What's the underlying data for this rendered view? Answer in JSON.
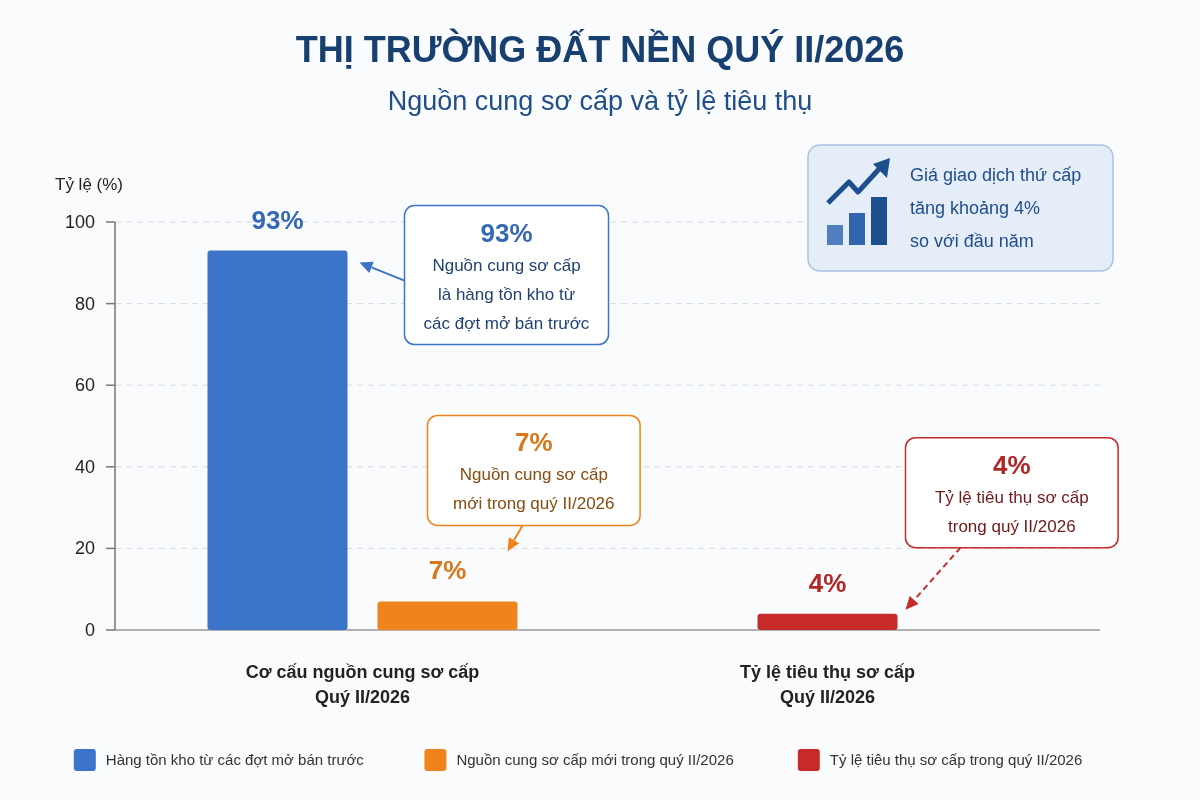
{
  "chart_data": {
    "type": "bar",
    "title": "THỊ TRƯỜNG ĐẤT NỀN QUÝ II/2026",
    "subtitle": "Nguồn cung sơ cấp và tỷ lệ tiêu thụ",
    "ylabel": "Tỷ lệ (%)",
    "categories": [
      "Cơ cấu nguồn cung sơ cấp Quý II/2026",
      "Tỷ lệ tiêu thụ sơ cấp Quý II/2026"
    ],
    "series": [
      {
        "name": "Hàng tồn kho từ các đợt mở bán trước",
        "color": "#3b74c8",
        "values": [
          93,
          null
        ],
        "value_labels": [
          "93%",
          null
        ]
      },
      {
        "name": "Nguồn cung sơ cấp mới trong quý II/2026",
        "color": "#f0841c",
        "values": [
          7,
          null
        ],
        "value_labels": [
          "7%",
          null
        ]
      },
      {
        "name": "Tỷ lệ tiêu thụ sơ cấp trong quý II/2026",
        "color": "#c62a2a",
        "values": [
          null,
          4
        ],
        "value_labels": [
          null,
          "4%"
        ]
      }
    ],
    "ylim": [
      0,
      100
    ],
    "yticks": [
      0,
      20,
      40,
      60,
      80,
      100
    ],
    "grid": "y",
    "legend": "bottom",
    "annotations": [
      "93%\nNguồn cung sơ cấp\nlà hàng tồn kho từ\ncác đợt mở bán trước",
      "7%\nNguồn cung sơ cấp\nmới trong quý II/2026",
      "4%\nTỷ lệ tiêu thụ sơ cấp\ntrong quý II/2026",
      "Giá giao dịch thứ cấp\ntăng khoảng 4%\nso với đầu năm"
    ]
  }
}
